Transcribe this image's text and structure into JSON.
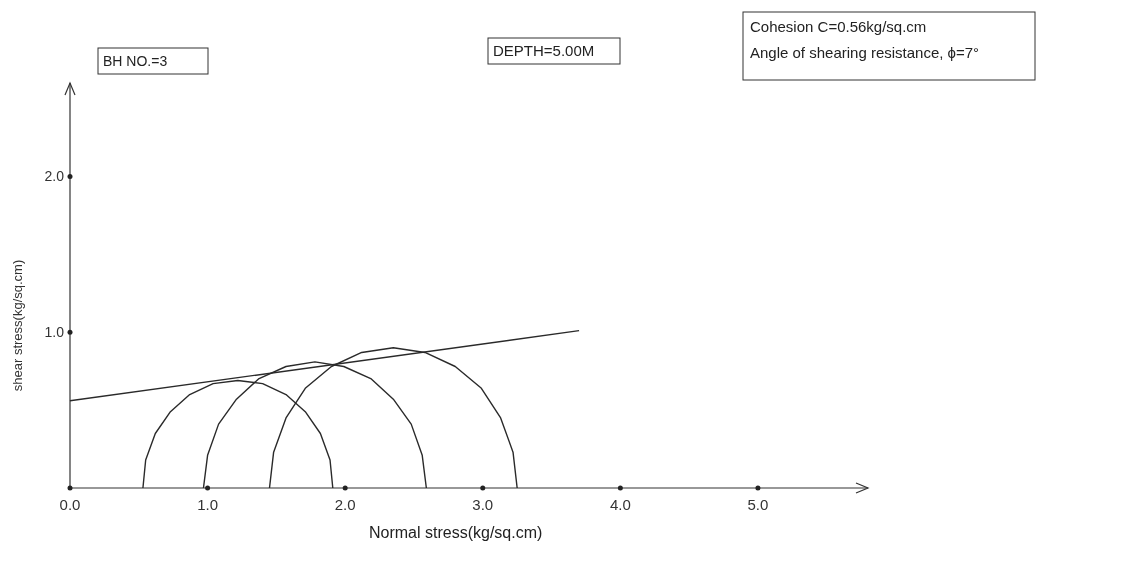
{
  "chart_data": {
    "type": "line",
    "xlabel": "Normal stress(kg/sq.cm)",
    "ylabel": "shear stress(kg/sq.cm)",
    "annotations": [
      "BH NO.=3",
      "DEPTH=5.00M",
      "Cohesion C=0.56kg/sq.cm",
      "Angle of shearing resistance, ϕ=7°"
    ],
    "xlim": [
      0,
      5.8
    ],
    "ylim": [
      0,
      2.6
    ],
    "xticks": [
      {
        "value": 0,
        "label": "0.0"
      },
      {
        "value": 1,
        "label": "1.0"
      },
      {
        "value": 2,
        "label": "2.0"
      },
      {
        "value": 3,
        "label": "3.0"
      },
      {
        "value": 4,
        "label": "4.0"
      },
      {
        "value": 5,
        "label": "5.0"
      }
    ],
    "yticks": [
      {
        "value": 1,
        "label": "1.0"
      },
      {
        "value": 2,
        "label": "2.0"
      }
    ],
    "series": [
      {
        "color": "#2a2a2a",
        "x": [
          1.91,
          1.89,
          1.82,
          1.71,
          1.57,
          1.4,
          1.22,
          1.04,
          0.87,
          0.73,
          0.62,
          0.55,
          0.53
        ],
        "values": [
          0,
          0.18,
          0.35,
          0.49,
          0.6,
          0.67,
          0.69,
          0.67,
          0.6,
          0.49,
          0.35,
          0.18,
          0
        ]
      },
      {
        "color": "#2a2a2a",
        "x": [
          2.59,
          2.56,
          2.48,
          2.35,
          2.19,
          1.99,
          1.78,
          1.57,
          1.37,
          1.21,
          1.08,
          1.0,
          0.97
        ],
        "values": [
          0,
          0.21,
          0.41,
          0.57,
          0.7,
          0.78,
          0.81,
          0.78,
          0.7,
          0.57,
          0.41,
          0.21,
          0
        ]
      },
      {
        "color": "#2a2a2a",
        "x": [
          3.25,
          3.22,
          3.13,
          2.99,
          2.8,
          2.58,
          2.35,
          2.12,
          1.9,
          1.71,
          1.57,
          1.48,
          1.45
        ],
        "values": [
          0,
          0.23,
          0.45,
          0.64,
          0.78,
          0.87,
          0.9,
          0.87,
          0.78,
          0.64,
          0.45,
          0.23,
          0
        ]
      },
      {
        "color": "#2a2a2a",
        "x": [
          0,
          3.7
        ],
        "values": [
          0.56,
          1.01
        ]
      }
    ]
  }
}
